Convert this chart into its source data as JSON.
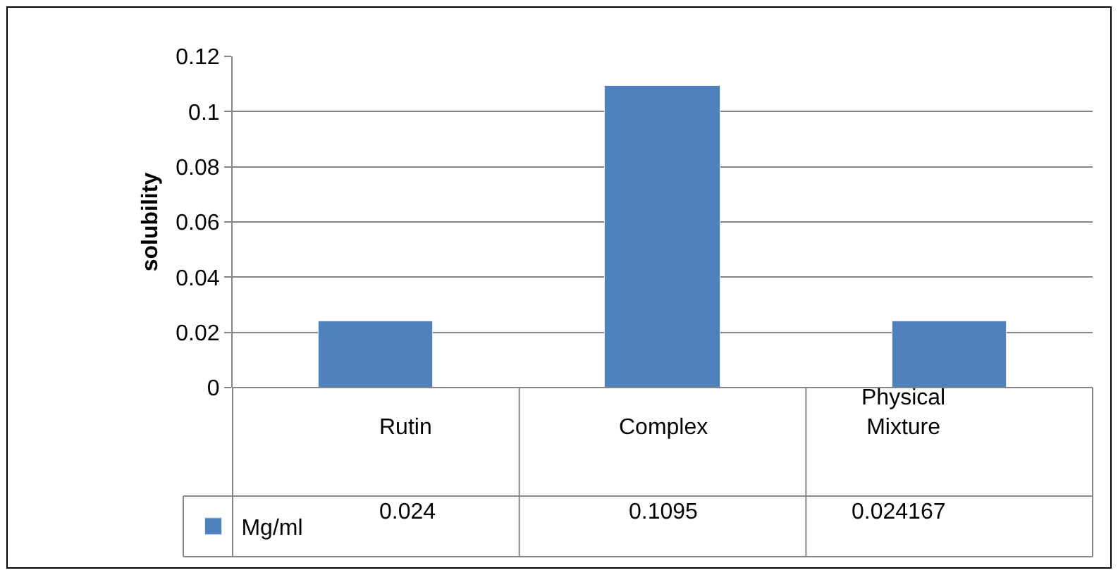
{
  "chart_data": {
    "type": "bar",
    "ylabel": "solubility",
    "categories": [
      "Rutin",
      "Complex",
      "Physical Mixture"
    ],
    "series": [
      {
        "name": "Mg/ml",
        "color": "#4f81bd",
        "values": [
          0.024,
          0.1095,
          0.024167
        ]
      }
    ],
    "ylim": [
      0,
      0.12
    ],
    "yticks": [
      0,
      0.02,
      0.04,
      0.06,
      0.08,
      0.1,
      0.12
    ],
    "grid": "y",
    "legend": "bottom",
    "data_labels": true
  }
}
